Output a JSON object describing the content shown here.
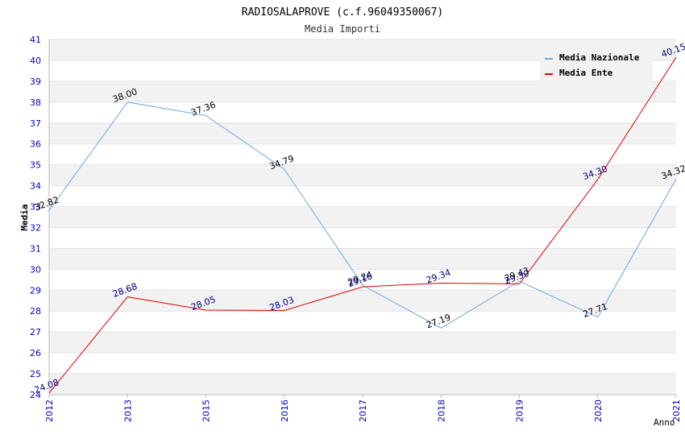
{
  "chart_data": {
    "type": "line",
    "title": "RADIOSALAPROVE (c.f.96049350067)",
    "subtitle": "Media Importi",
    "xlabel": "Anno",
    "ylabel": "Media",
    "categories": [
      "2012",
      "2013",
      "2015",
      "2016",
      "2017",
      "2018",
      "2019",
      "2020",
      "2021"
    ],
    "ylim": [
      24,
      41
    ],
    "yticks": [
      "24",
      "25",
      "26",
      "27",
      "28",
      "29",
      "30",
      "31",
      "32",
      "33",
      "34",
      "35",
      "36",
      "37",
      "38",
      "39",
      "40",
      "41"
    ],
    "legend_position": "top-right",
    "series": [
      {
        "name": "Media Nazionale",
        "color": "#6fa8dc",
        "label_color": "#000000",
        "values": [
          32.82,
          38.0,
          37.36,
          34.79,
          29.24,
          27.19,
          29.43,
          27.71,
          34.32
        ],
        "labels": [
          "32.82",
          "38.00",
          "37.36",
          "34.79",
          "29.24",
          "27.19",
          "29.43",
          "27.71",
          "34.32"
        ]
      },
      {
        "name": "Media Ente",
        "color": "#e00000",
        "label_color": "#000080",
        "values": [
          24.08,
          28.68,
          28.05,
          28.03,
          29.16,
          29.34,
          29.3,
          34.3,
          40.15
        ],
        "labels": [
          "24.08",
          "28.68",
          "28.05",
          "28.03",
          "29.16",
          "29.34",
          "29.30",
          "34.30",
          "40.15"
        ]
      }
    ],
    "colors": {
      "axis_text": "#0000cc",
      "band": "#f2f2f2",
      "grid": "#e2e2e2",
      "axis": "#bbbbbb"
    }
  }
}
